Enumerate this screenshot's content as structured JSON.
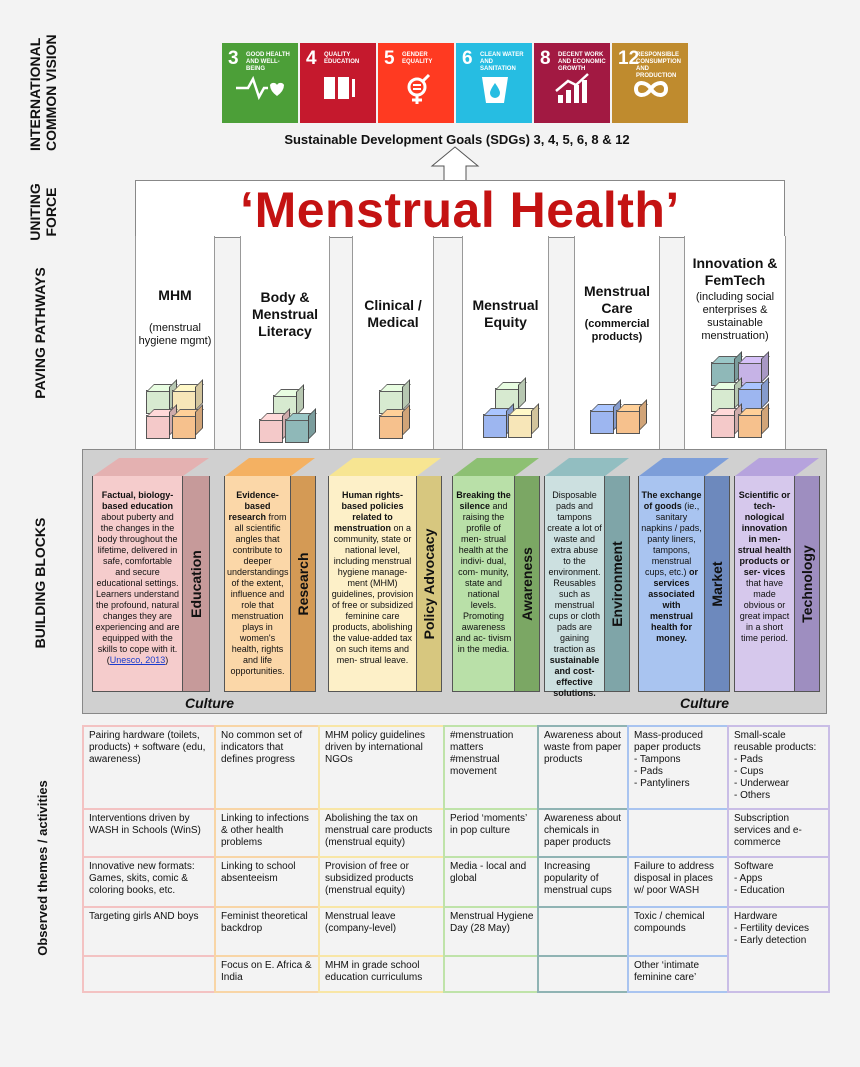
{
  "left_labels": {
    "vision": [
      "INTERNATIONAL",
      "COMMON VISION"
    ],
    "force": [
      "UNITING",
      "FORCE"
    ],
    "paving": "PAVING PATHWAYS",
    "blocks": "BUILDING BLOCKS",
    "observed": "Observed themes / activities"
  },
  "sdgs": [
    {
      "num": "3",
      "label": "GOOD HEALTH AND WELL-BEING",
      "color": "#4c9f38",
      "icon": "heartbeat-icon"
    },
    {
      "num": "4",
      "label": "QUALITY EDUCATION",
      "color": "#c5192d",
      "icon": "book-icon"
    },
    {
      "num": "5",
      "label": "GENDER EQUALITY",
      "color": "#ff3a21",
      "icon": "gender-icon"
    },
    {
      "num": "6",
      "label": "CLEAN WATER AND SANITATION",
      "color": "#26bde2",
      "icon": "water-icon"
    },
    {
      "num": "8",
      "label": "DECENT WORK AND ECONOMIC GROWTH",
      "color": "#a21942",
      "icon": "growth-icon"
    },
    {
      "num": "12",
      "label": "RESPONSIBLE CONSUMPTION AND PRODUCTION",
      "color": "#bf8b2e",
      "icon": "infinity-icon"
    }
  ],
  "sdg_caption": "Sustainable Development Goals (SDGs) 3, 4, 5, 6, 8 & 12",
  "main_title": "‘Menstrual Health’",
  "pillars": [
    {
      "title": "MHM",
      "sub": "(menstrual hygiene mgmt)"
    },
    {
      "title": "Body & Menstrual Literacy",
      "sub": ""
    },
    {
      "title": "Clinical / Medical",
      "sub": ""
    },
    {
      "title": "Menstrual Equity",
      "sub": ""
    },
    {
      "title": "Menstrual Care",
      "sub": "(commercial products)"
    },
    {
      "title": "Innovation & FemTech",
      "sub": "(including social enterprises & sustainable menstruation)"
    }
  ],
  "blocks": [
    {
      "label": "Education",
      "front_color": "#f5cccc",
      "side_color": "#c69a9a",
      "bold": "Factual, biology-based education",
      "text": " about puberty and the changes in the body throughout the lifetime, delivered in safe, comfortable and secure educational settings. Learners understand the profound, natural changes they are experiencing and are equipped with the skills to cope with it. (",
      "link": "Unesco, 2013",
      "text_end": ")"
    },
    {
      "label": "Research",
      "front_color": "#fbd7a8",
      "side_color": "#d49a55",
      "bold": "Evidence-based research",
      "text": " from all scientific angles that contribute to deeper understandings of the extent, influence and role that menstruation plays in women's health, rights and life opportunities.",
      "link": "",
      "text_end": ""
    },
    {
      "label": "Policy Advocacy",
      "front_color": "#fdf0c8",
      "side_color": "#d7c77f",
      "bold": "Human rights-based policies related to menstruation",
      "text": " on a community, state or national level, including menstrual hygiene manage- ment (MHM) guidelines, provision of free or subsidized feminine care products, abolishing the value-added tax on such items and men- strual leave.",
      "link": "",
      "text_end": ""
    },
    {
      "label": "Awareness",
      "front_color": "#b9e0a8",
      "side_color": "#7ba764",
      "bold": "Breaking the silence",
      "text": " and raising the profile of men- strual health at the indivi- dual, com- munity, state and national levels. Promoting awareness and ac- tivism in the media.",
      "link": "",
      "text_end": ""
    },
    {
      "label": "Environment",
      "front_color": "#cce0e0",
      "side_color": "#7fa5a8",
      "bold": "",
      "text": "Disposable pads and tampons create a lot of waste and extra abuse to the environment. Reusables such as menstrual cups or cloth pads are gaining traction as ",
      "link": "",
      "text_end": "",
      "bold_end": "sustainable and cost-effective solutions."
    },
    {
      "label": "Market",
      "front_color": "#a9c4f0",
      "side_color": "#6d89bd",
      "bold": "The exchange of goods",
      "text": " (ie., sanitary napkins / pads, panty liners, tampons, menstrual cups, etc.) ",
      "link": "",
      "text_end": "",
      "bold_end": "or services associated with menstrual health for money."
    },
    {
      "label": "Technology",
      "front_color": "#d6c8ec",
      "side_color": "#9e8ec0",
      "bold": "Scientific or tech- nological innovation in men- strual health products or ser- vices",
      "text": " that have made obvious or great impact in a short time period.",
      "link": "",
      "text_end": ""
    }
  ],
  "culture_label": "Culture",
  "themes": [
    {
      "color": "#f3c2c2",
      "cells": [
        "Pairing hardware (toilets, products) + software (edu, awareness)",
        "Interventions driven by WASH in Schools (WinS)",
        "Innovative new formats: Games, skits, comic & coloring books, etc.",
        "Targeting girls AND boys",
        ""
      ]
    },
    {
      "color": "#f8d5a6",
      "cells": [
        "No common set of indicators that defines progress",
        "Linking to infections & other health problems",
        "Linking to school absenteeism",
        "Feminist theoretical backdrop",
        "Focus on E. Africa & India"
      ]
    },
    {
      "color": "#f8e6a6",
      "cells": [
        "MHM policy guidelines driven by international NGOs",
        "Abolishing the tax on menstrual care products (menstrual equity)",
        "Provision of free or subsidized products (menstrual equity)",
        "Menstrual leave (company-level)",
        "MHM in grade school education curriculums"
      ]
    },
    {
      "color": "#bfe3a9",
      "cells": [
        "#menstruation matters #menstrual movement",
        "Period ‘moments’ in pop culture",
        "Media - local and global",
        "Menstrual Hygiene Day (28 May)",
        ""
      ]
    },
    {
      "color": "#8fb3b3",
      "cells": [
        "Awareness about waste from paper products",
        "Awareness about chemicals in paper products",
        "Increasing popularity of menstrual cups",
        "",
        ""
      ]
    },
    {
      "color": "#a9c4f0",
      "cells": [
        "Mass-produced paper products\n- Tampons\n- Pads\n- Pantyliners",
        "",
        "Failure to address disposal in places w/ poor WASH",
        "Toxic / chemical compounds",
        "Other ‘intimate feminine care’"
      ]
    },
    {
      "color": "#c9bde6",
      "cells": [
        "Small-scale reusable products:\n- Pads\n- Cups\n- Underwear\n- Others",
        "Subscription services and e-commerce",
        "Software\n- Apps\n- Education",
        "Hardware\n- Fertility devices\n- Early detection",
        "__merged__"
      ]
    }
  ]
}
